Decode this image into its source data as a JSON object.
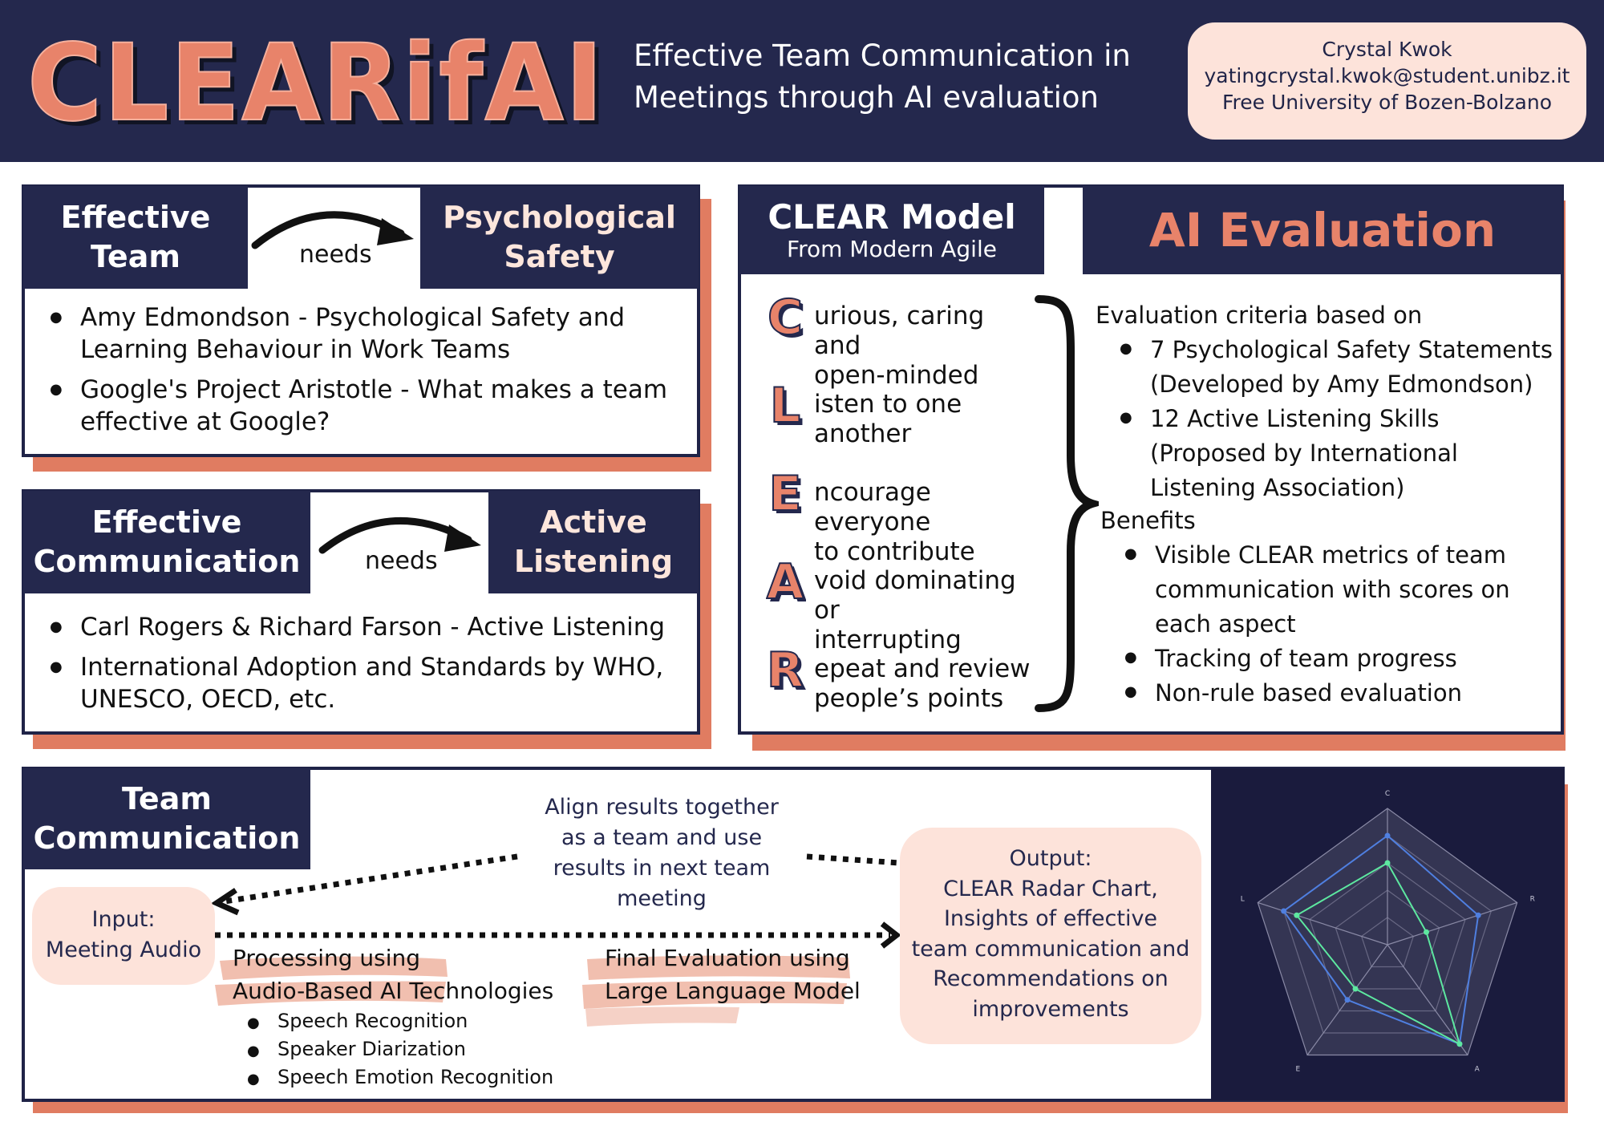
{
  "header": {
    "logo": "CLEARifAI",
    "title_line1": "Effective Team Communication in",
    "title_line2": "Meetings through AI evaluation",
    "author": {
      "name": "Crystal Kwok",
      "email": "yatingcrystal.kwok@student.unibz.it",
      "affiliation": "Free University of Bozen-Bolzano"
    }
  },
  "panel_team": {
    "left_line1": "Effective",
    "left_line2": "Team",
    "connector": "needs",
    "right_line1": "Psychological",
    "right_line2": "Safety",
    "bullets": [
      {
        "line1": "Amy Edmondson - Psychological Safety and",
        "line2": "Learning Behaviour in Work Teams"
      },
      {
        "line1": "Google's Project Aristotle - What makes a team",
        "line2": "effective at Google?"
      }
    ]
  },
  "panel_comm": {
    "left_line1": "Effective",
    "left_line2": "Communication",
    "connector": "needs",
    "right_line1": "Active",
    "right_line2": "Listening",
    "bullets": [
      {
        "line1": "Carl Rogers & Richard Farson - Active Listening",
        "line2": ""
      },
      {
        "line1": "International Adoption and Standards by WHO,",
        "line2": "UNESCO, OECD, etc."
      }
    ]
  },
  "clear_model": {
    "title": "CLEAR Model",
    "subtitle": "From Modern Agile",
    "items": [
      {
        "letter": "C",
        "line1": "urious, caring and",
        "line2": "open-minded"
      },
      {
        "letter": "L",
        "line1": "isten to one",
        "line2": "another"
      },
      {
        "letter": "E",
        "line1": "ncourage everyone",
        "line2": "to contribute"
      },
      {
        "letter": "A",
        "line1": "void dominating or",
        "line2": "interrupting"
      },
      {
        "letter": "R",
        "line1": "epeat and review",
        "line2": "people’s points"
      }
    ]
  },
  "ai_eval": {
    "title": "AI Evaluation",
    "criteria_heading": "Evaluation criteria based on",
    "criteria": [
      {
        "line1": "7 Psychological Safety Statements",
        "line2": "(Developed by Amy Edmondson)",
        "line3": ""
      },
      {
        "line1": "12 Active Listening Skills",
        "line2": "(Proposed by International",
        "line3": "Listening Association)"
      }
    ],
    "benefits_heading": "Benefits",
    "benefits": [
      {
        "line1": "Visible CLEAR metrics of team",
        "line2": "communication with scores on",
        "line3": "each aspect"
      },
      {
        "line1": "Tracking of team progress",
        "line2": "",
        "line3": ""
      },
      {
        "line1": "Non-rule based evaluation",
        "line2": "",
        "line3": ""
      }
    ]
  },
  "team_comm": {
    "heading_line1": "Team",
    "heading_line2": "Communication",
    "align_text": [
      "Align results together",
      "as a team and use",
      "results in next team",
      "meeting"
    ],
    "input": [
      "Input:",
      "Meeting Audio"
    ],
    "processing": [
      "Processing using",
      "Audio-Based AI Technologies"
    ],
    "processing_items": [
      "Speech Recognition",
      "Speaker Diarization",
      "Speech Emotion Recognition"
    ],
    "final_eval": [
      "Final Evaluation using",
      "Large Language Model"
    ],
    "output": [
      "Output:",
      "CLEAR Radar Chart,",
      "Insights of effective",
      "team communication and",
      "Recommendations on",
      "improvements"
    ]
  },
  "colors": {
    "navy": "#24284d",
    "accent": "#e07c61",
    "peach": "#fde6dc",
    "radar_blue": "#4f7fe0",
    "radar_green": "#5de8a0"
  },
  "chart_data": {
    "type": "radar",
    "categories": [
      "C",
      "R",
      "A",
      "E",
      "L"
    ],
    "levels": 5,
    "max": 5,
    "series": [
      {
        "values": [
          4,
          3.5,
          4.5,
          2.5,
          4
        ]
      },
      {
        "values": [
          3,
          1.5,
          4.5,
          2.0,
          3.5
        ]
      }
    ]
  }
}
